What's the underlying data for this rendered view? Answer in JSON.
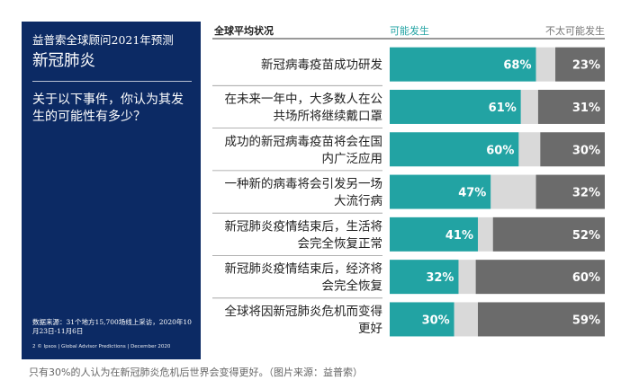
{
  "panel": {
    "org_title": "益普索全球顾问2021年预测",
    "main_title": "新冠肺炎",
    "question": "关于以下事件，你认为其发生的可能性有多少？",
    "source": "数据来源：31个地方15,700场线上采访，2020年10月23日-11月6日",
    "footer": "2  © Ipsos | Global Advisor Predictions | December 2020",
    "bg_color": "#0c2a64"
  },
  "caption": "只有30%的人认为在新冠肺炎危机后世界会变得更好。（图片来源：益普索）",
  "chart_data": {
    "type": "bar",
    "stacked": true,
    "orientation": "horizontal",
    "title": "全球平均状况",
    "xlim": [
      0,
      100
    ],
    "categories": [
      "新冠病毒疫苗成功研发",
      "在未来一年中，大多数人在公共场所将继续戴口罩",
      "成功的新冠病毒疫苗将会在国内广泛应用",
      "一种新的病毒将会引发另一场大流行病",
      "新冠肺炎疫情结束后，生活将会完全恢复正常",
      "新冠肺炎疫情结束后，经济将会完全恢复",
      "全球将因新冠肺炎危机而变得更好"
    ],
    "category_lines": [
      [
        "新冠病毒疫苗成功研发"
      ],
      [
        "在未来一年中，大多数人在公",
        "共场所将继续戴口罩"
      ],
      [
        "成功的新冠病毒疫苗将会在国",
        "内广泛应用"
      ],
      [
        "一种新的病毒将会引发另一场",
        "大流行病"
      ],
      [
        "新冠肺炎疫情结束后，生活将",
        "会完全恢复正常"
      ],
      [
        "新冠肺炎疫情结束后，经济将",
        "会完全恢复"
      ],
      [
        "全球将因新冠肺炎危机而变得",
        "更好"
      ]
    ],
    "series": [
      {
        "name": "可能发生",
        "values": [
          68,
          61,
          60,
          47,
          41,
          32,
          30
        ],
        "color": "#22a3a3"
      },
      {
        "values": [
          9,
          8,
          10,
          21,
          7,
          8,
          11
        ],
        "color": "#d9d9d9"
      },
      {
        "name": "不太可能发生",
        "values": [
          23,
          31,
          30,
          32,
          52,
          60,
          59
        ],
        "color": "#6b6b6b"
      }
    ],
    "legend_position": "top"
  }
}
